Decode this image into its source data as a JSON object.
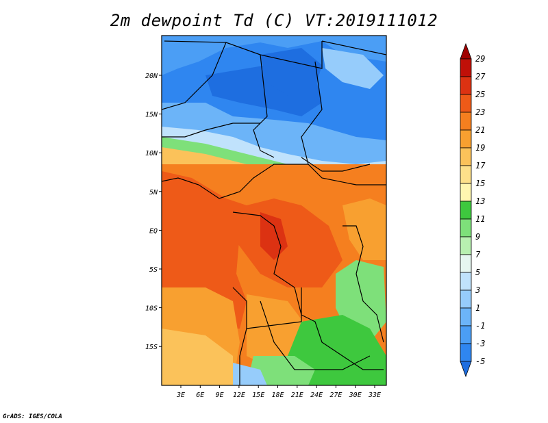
{
  "title": "2m dewpoint Td (C) VT:2019111012",
  "credit": "GrADS: IGES/COLA",
  "map": {
    "lon_labels": [
      "3E",
      "6E",
      "9E",
      "12E",
      "15E",
      "18E",
      "21E",
      "24E",
      "27E",
      "30E",
      "33E"
    ],
    "lat_labels": [
      "20N",
      "15N",
      "10N",
      "5N",
      "EQ",
      "5S",
      "10S",
      "15S"
    ]
  },
  "colorbar": {
    "levels": [
      "-5",
      "-3",
      "-1",
      "1",
      "3",
      "5",
      "7",
      "9",
      "11",
      "13",
      "15",
      "17",
      "19",
      "21",
      "23",
      "25",
      "27",
      "29"
    ],
    "colors": [
      "#1e6ee0",
      "#2f86f0",
      "#4b9ef5",
      "#6cb4f8",
      "#96ccfb",
      "#c0e2fc",
      "#e6f6f0",
      "#b8f0b0",
      "#7ee07a",
      "#3ec83e",
      "#fff6b0",
      "#fde08a",
      "#fbc25a",
      "#f8a030",
      "#f57f1f",
      "#ee5a18",
      "#dc3212",
      "#c01008",
      "#a00000"
    ]
  }
}
